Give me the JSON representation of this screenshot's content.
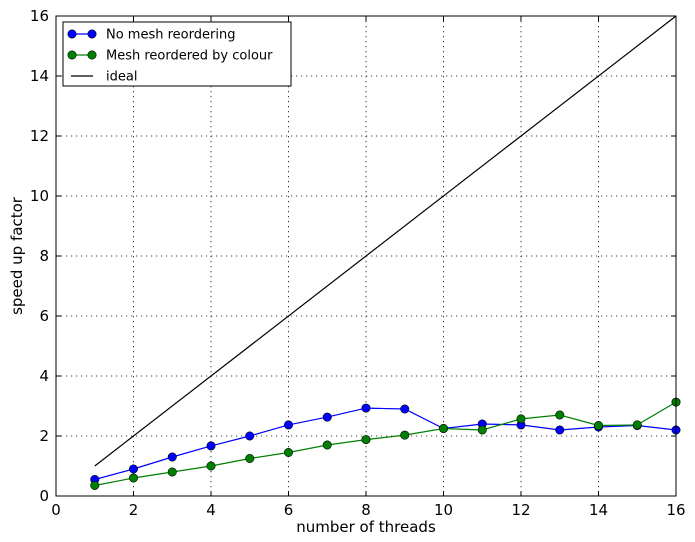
{
  "chart_data": {
    "type": "line",
    "title": "",
    "xlabel": "number of threads",
    "ylabel": "speed up factor",
    "xlim": [
      0,
      16
    ],
    "ylim": [
      0,
      16
    ],
    "xticks": [
      "0",
      "2",
      "4",
      "6",
      "8",
      "10",
      "12",
      "14",
      "16"
    ],
    "yticks": [
      "0",
      "2",
      "4",
      "6",
      "8",
      "10",
      "12",
      "14",
      "16"
    ],
    "grid": true,
    "legend_position": "top-left",
    "series": [
      {
        "name": "No mesh reordering",
        "color": "#0000ff",
        "marker": "circle",
        "x": [
          1,
          2,
          3,
          4,
          5,
          6,
          7,
          8,
          9,
          10,
          11,
          12,
          13,
          14,
          15,
          16
        ],
        "y": [
          0.55,
          0.9,
          1.3,
          1.67,
          2.0,
          2.37,
          2.63,
          2.93,
          2.9,
          2.25,
          2.4,
          2.37,
          2.2,
          2.3,
          2.35,
          2.2
        ]
      },
      {
        "name": "Mesh reordered by colour",
        "color": "#008000",
        "marker": "circle",
        "x": [
          1,
          2,
          3,
          4,
          5,
          6,
          7,
          8,
          9,
          10,
          11,
          12,
          13,
          14,
          15,
          16
        ],
        "y": [
          0.35,
          0.6,
          0.8,
          1.0,
          1.25,
          1.45,
          1.7,
          1.88,
          2.03,
          2.25,
          2.2,
          2.57,
          2.7,
          2.35,
          2.37,
          3.13
        ]
      },
      {
        "name": "ideal",
        "color": "#000000",
        "marker": "none",
        "x": [
          1,
          16
        ],
        "y": [
          1,
          16
        ]
      }
    ]
  }
}
